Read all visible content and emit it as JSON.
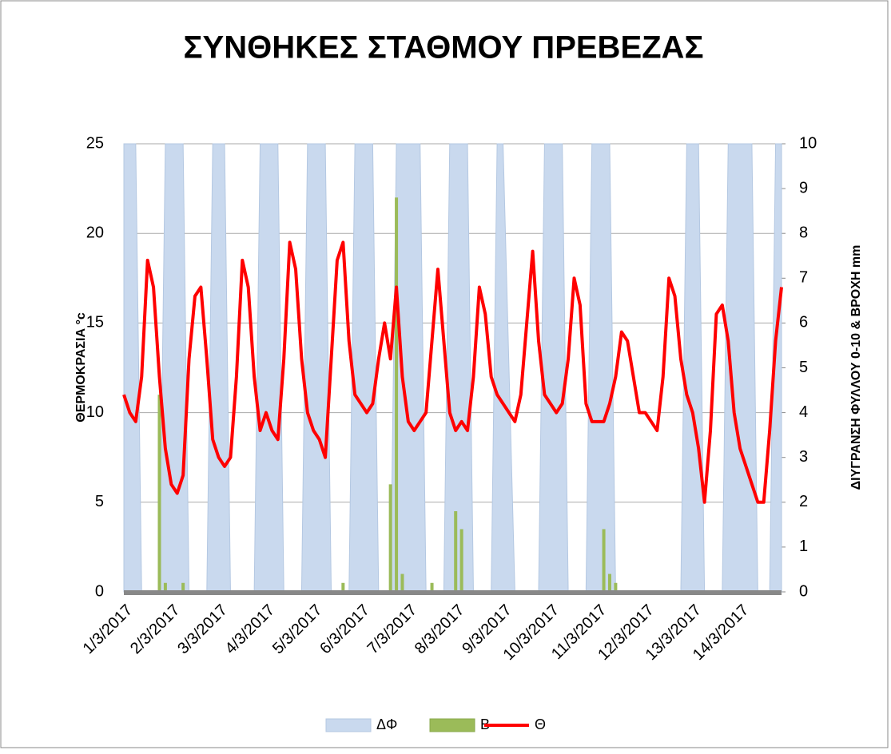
{
  "chart_data": {
    "type": "combo",
    "title": "ΣΥΝΘΗΚΕΣ ΣΤΑΘΜΟΥ ΠΡΕΒΕΖΑΣ",
    "y_label": "ΘΕΡΜΟΚΡΑΣΙΑ °c",
    "y2_label": "ΔΙΥΓΡΑΝΣΗ ΦΥΛΛΟΥ 0-10 & ΒΡΟΧΗ mm",
    "categories": [
      "1/3/2017",
      null,
      null,
      null,
      null,
      null,
      null,
      null,
      "2/3/2017",
      null,
      null,
      null,
      null,
      null,
      null,
      null,
      "3/3/2017",
      null,
      null,
      null,
      null,
      null,
      null,
      null,
      "4/3/2017",
      null,
      null,
      null,
      null,
      null,
      null,
      null,
      "5/3/2017",
      null,
      null,
      null,
      null,
      null,
      null,
      null,
      "6/3/2017",
      null,
      null,
      null,
      null,
      null,
      null,
      null,
      "7/3/2017",
      null,
      null,
      null,
      null,
      null,
      null,
      null,
      "8/3/2017",
      null,
      null,
      null,
      null,
      null,
      null,
      null,
      "9/3/2017",
      null,
      null,
      null,
      null,
      null,
      null,
      null,
      "10/3/2017",
      null,
      null,
      null,
      null,
      null,
      null,
      null,
      "11/3/2017",
      null,
      null,
      null,
      null,
      null,
      null,
      null,
      "12/3/2017",
      null,
      null,
      null,
      null,
      null,
      null,
      null,
      "13/3/2017",
      null,
      null,
      null,
      null,
      null,
      null,
      null,
      "14/3/2017",
      null,
      null,
      null,
      null,
      null,
      null,
      null
    ],
    "ylim": [
      0,
      25
    ],
    "yticks": [
      0,
      5,
      10,
      15,
      20,
      25
    ],
    "y2lim": [
      0,
      10
    ],
    "y2ticks": [
      0,
      1,
      2,
      3,
      4,
      5,
      6,
      7,
      8,
      9,
      10
    ],
    "grid": true,
    "legend": "bottom",
    "series": [
      {
        "name": "ΔΦ",
        "kind": "area",
        "axis": "y2",
        "color": "#c9d9ee",
        "values": [
          10,
          10,
          10,
          0,
          0,
          0,
          0,
          10,
          10,
          10,
          10,
          0,
          0,
          0,
          0,
          10,
          10,
          10,
          0,
          0,
          0,
          0,
          0,
          10,
          10,
          10,
          10,
          0,
          0,
          0,
          0,
          10,
          10,
          10,
          10,
          0,
          0,
          0,
          0,
          10,
          10,
          10,
          10,
          0,
          0,
          0,
          10,
          10,
          10,
          10,
          10,
          0,
          0,
          0,
          0,
          10,
          10,
          10,
          10,
          0,
          0,
          0,
          0,
          10,
          10,
          5,
          0,
          0,
          0,
          0,
          0,
          10,
          10,
          10,
          10,
          0,
          0,
          0,
          0,
          10,
          10,
          10,
          10,
          0,
          0,
          0,
          0,
          0,
          0,
          0,
          0,
          0,
          0,
          0,
          0,
          10,
          10,
          10,
          0,
          0,
          0,
          0,
          10,
          10,
          10,
          10,
          10,
          0,
          0,
          0,
          10,
          10
        ]
      },
      {
        "name": "Β",
        "kind": "bar",
        "axis": "y2",
        "color": "#9bbb59",
        "values": [
          0,
          0,
          0,
          0,
          0,
          0,
          4.4,
          0.2,
          0,
          0,
          0.2,
          0,
          0,
          0,
          0,
          0,
          0,
          0,
          0,
          0,
          0,
          0,
          0,
          0,
          0,
          0,
          0,
          0,
          0,
          0,
          0,
          0,
          0,
          0,
          0,
          0,
          0,
          0.2,
          0,
          0,
          0,
          0,
          0,
          0,
          0,
          2.4,
          8.8,
          0.4,
          0,
          0,
          0,
          0,
          0.2,
          0,
          0,
          0,
          1.8,
          1.4,
          0,
          0,
          0,
          0,
          0,
          0,
          0,
          0,
          0,
          0,
          0,
          0,
          0,
          0,
          0,
          0,
          0,
          0,
          0,
          0,
          0,
          0,
          0,
          1.4,
          0.4,
          0.2,
          0,
          0,
          0,
          0,
          0,
          0,
          0,
          0,
          0,
          0,
          0,
          0,
          0,
          0,
          0,
          0,
          0,
          0,
          0,
          0,
          0,
          0,
          0,
          0,
          0,
          0,
          0,
          0
        ]
      },
      {
        "name": "Θ",
        "kind": "line",
        "axis": "y",
        "color": "#ff0000",
        "values": [
          11,
          10,
          9.5,
          12,
          18.5,
          17,
          12,
          8,
          6,
          5.5,
          6.5,
          13,
          16.5,
          17,
          13,
          8.5,
          7.5,
          7,
          7.5,
          12,
          18.5,
          17,
          12,
          9,
          10,
          9,
          8.5,
          13,
          19.5,
          18,
          13,
          10,
          9,
          8.5,
          7.5,
          13,
          18.5,
          19.5,
          14,
          11,
          10.5,
          10,
          10.5,
          13,
          15,
          13,
          17,
          12,
          9.5,
          9,
          9.5,
          10,
          14,
          18,
          14,
          10,
          9,
          9.5,
          9,
          12,
          17,
          15.5,
          12,
          11,
          10.5,
          10,
          9.5,
          11,
          15,
          19,
          14,
          11,
          10.5,
          10,
          10.5,
          13,
          17.5,
          16,
          10.5,
          9.5,
          9.5,
          9.5,
          10.5,
          12,
          14.5,
          14,
          12,
          10,
          10,
          9.5,
          9,
          12,
          17.5,
          16.5,
          13,
          11,
          10,
          8,
          5,
          9,
          15.5,
          16,
          14,
          10,
          8,
          7,
          6,
          5,
          5,
          9,
          14,
          17
        ]
      }
    ]
  }
}
